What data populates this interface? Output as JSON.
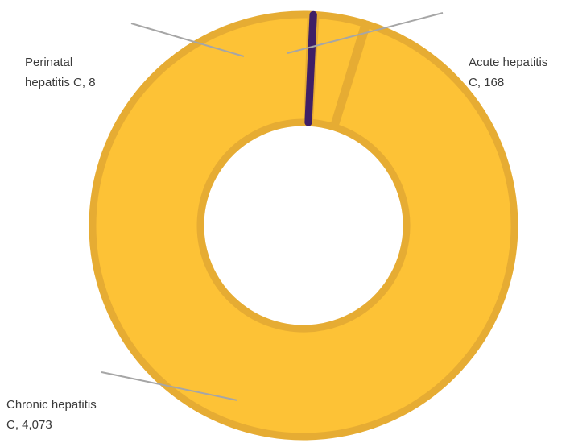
{
  "chart_data": {
    "type": "pie",
    "variant": "donut",
    "title": "",
    "slices": [
      {
        "category": "Acute hepatitis C",
        "value": 168,
        "label_lines": [
          "Acute hepatitis",
          "C, 168"
        ],
        "color": "#fdc236",
        "edge_color": "#e6ac33"
      },
      {
        "category": "Chronic hepatitis C",
        "value": 4073,
        "label_lines": [
          "Chronic hepatitis",
          "C, 4,073"
        ],
        "color": "#fdc236",
        "edge_color": "#e6ac33"
      },
      {
        "category": "Perinatal hepatitis C",
        "value": 8,
        "label_lines": [
          "Perinatal",
          "hepatitis C, 8"
        ],
        "color": "#58307f",
        "edge_color": "#3f1f66"
      }
    ],
    "legend": "none",
    "data_labels": "outside-with-leader-lines"
  }
}
